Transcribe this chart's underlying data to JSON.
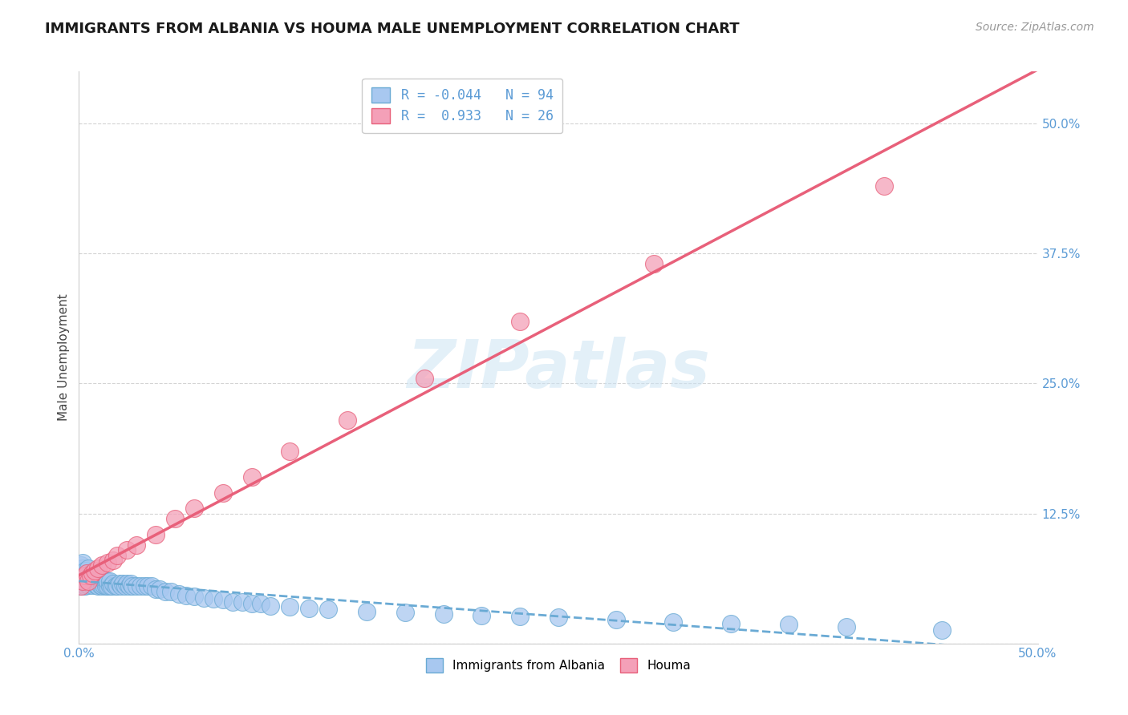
{
  "title": "IMMIGRANTS FROM ALBANIA VS HOUMA MALE UNEMPLOYMENT CORRELATION CHART",
  "source": "Source: ZipAtlas.com",
  "ylabel": "Male Unemployment",
  "xlim": [
    0.0,
    0.5
  ],
  "ylim": [
    0.0,
    0.55
  ],
  "yticks": [
    0.0,
    0.125,
    0.25,
    0.375,
    0.5
  ],
  "ytick_labels": [
    "",
    "12.5%",
    "25.0%",
    "37.5%",
    "50.0%"
  ],
  "xticks": [
    0.0,
    0.1,
    0.2,
    0.3,
    0.4,
    0.5
  ],
  "xtick_labels": [
    "0.0%",
    "",
    "",
    "",
    "",
    "50.0%"
  ],
  "albania_color": "#a8c8f0",
  "houma_color": "#f4a0b8",
  "albania_edge_color": "#6aaad4",
  "houma_edge_color": "#e8607a",
  "albania_line_color": "#6aaad4",
  "houma_line_color": "#e8607a",
  "grid_color": "#d0d0d0",
  "background_color": "#ffffff",
  "watermark": "ZIPatlas",
  "title_fontsize": 13,
  "axis_label_fontsize": 11,
  "tick_fontsize": 11,
  "source_fontsize": 10,
  "albania_scatter_x": [
    0.0,
    0.001,
    0.001,
    0.001,
    0.001,
    0.002,
    0.002,
    0.002,
    0.002,
    0.002,
    0.003,
    0.003,
    0.003,
    0.003,
    0.004,
    0.004,
    0.004,
    0.005,
    0.005,
    0.005,
    0.005,
    0.006,
    0.006,
    0.006,
    0.007,
    0.007,
    0.007,
    0.008,
    0.008,
    0.008,
    0.009,
    0.009,
    0.01,
    0.01,
    0.01,
    0.011,
    0.011,
    0.012,
    0.012,
    0.013,
    0.013,
    0.014,
    0.014,
    0.015,
    0.015,
    0.016,
    0.016,
    0.017,
    0.018,
    0.019,
    0.02,
    0.021,
    0.022,
    0.023,
    0.024,
    0.025,
    0.026,
    0.027,
    0.028,
    0.03,
    0.032,
    0.034,
    0.036,
    0.038,
    0.04,
    0.042,
    0.045,
    0.048,
    0.052,
    0.056,
    0.06,
    0.065,
    0.07,
    0.075,
    0.08,
    0.085,
    0.09,
    0.095,
    0.1,
    0.11,
    0.12,
    0.13,
    0.15,
    0.17,
    0.19,
    0.21,
    0.23,
    0.25,
    0.28,
    0.31,
    0.34,
    0.37,
    0.4,
    0.45
  ],
  "albania_scatter_y": [
    0.06,
    0.055,
    0.065,
    0.07,
    0.075,
    0.058,
    0.062,
    0.068,
    0.072,
    0.078,
    0.055,
    0.06,
    0.065,
    0.07,
    0.058,
    0.063,
    0.068,
    0.056,
    0.061,
    0.066,
    0.072,
    0.058,
    0.063,
    0.068,
    0.056,
    0.061,
    0.066,
    0.058,
    0.063,
    0.068,
    0.056,
    0.061,
    0.055,
    0.06,
    0.065,
    0.056,
    0.061,
    0.055,
    0.06,
    0.056,
    0.061,
    0.055,
    0.06,
    0.055,
    0.06,
    0.055,
    0.06,
    0.055,
    0.058,
    0.055,
    0.055,
    0.058,
    0.055,
    0.058,
    0.055,
    0.058,
    0.055,
    0.058,
    0.055,
    0.055,
    0.055,
    0.055,
    0.055,
    0.055,
    0.052,
    0.052,
    0.05,
    0.05,
    0.048,
    0.046,
    0.045,
    0.044,
    0.043,
    0.042,
    0.04,
    0.04,
    0.038,
    0.038,
    0.036,
    0.035,
    0.034,
    0.033,
    0.031,
    0.03,
    0.028,
    0.027,
    0.026,
    0.025,
    0.023,
    0.021,
    0.019,
    0.018,
    0.016,
    0.013
  ],
  "houma_scatter_x": [
    0.001,
    0.002,
    0.003,
    0.004,
    0.005,
    0.006,
    0.007,
    0.008,
    0.01,
    0.012,
    0.015,
    0.018,
    0.02,
    0.025,
    0.03,
    0.04,
    0.05,
    0.06,
    0.075,
    0.09,
    0.11,
    0.14,
    0.18,
    0.23,
    0.3,
    0.42
  ],
  "houma_scatter_y": [
    0.055,
    0.06,
    0.065,
    0.068,
    0.06,
    0.065,
    0.068,
    0.07,
    0.072,
    0.075,
    0.078,
    0.08,
    0.085,
    0.09,
    0.095,
    0.105,
    0.12,
    0.13,
    0.145,
    0.16,
    0.185,
    0.215,
    0.255,
    0.31,
    0.365,
    0.44
  ]
}
